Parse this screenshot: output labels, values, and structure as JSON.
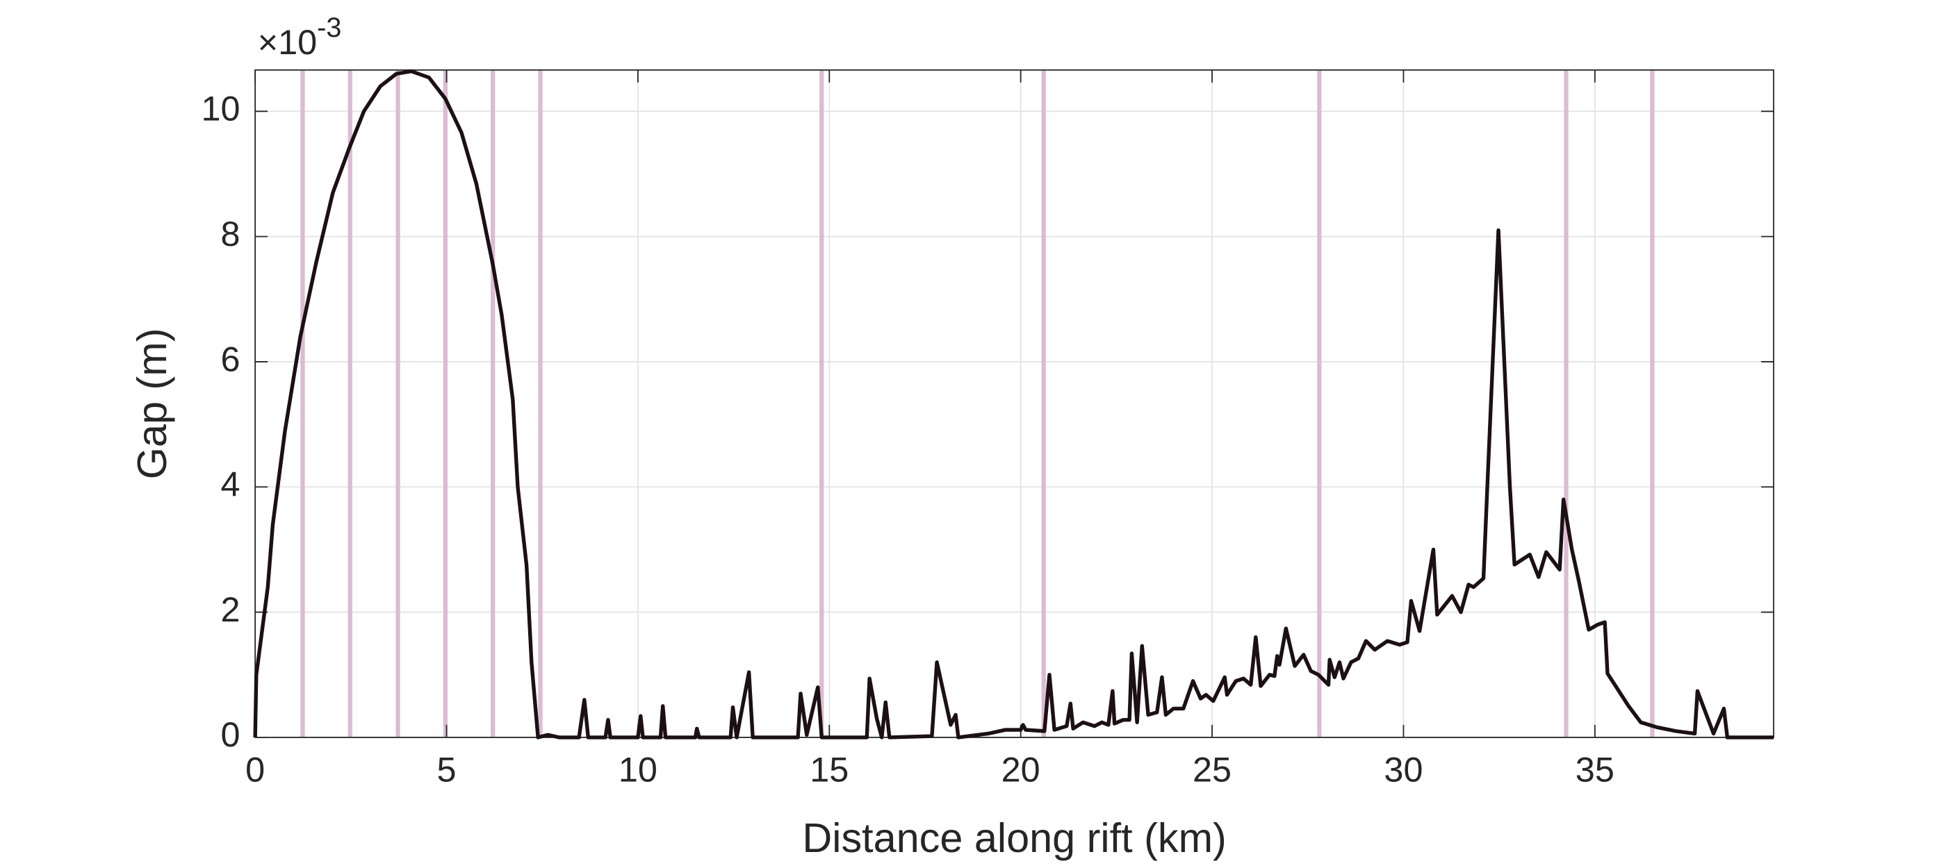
{
  "chart_data": {
    "type": "line",
    "x_label": "Distance along rift (km)",
    "y_label": "Gap (m)",
    "y_multiplier": {
      "base": "×10",
      "exponent": "-3"
    },
    "xlim": [
      0,
      39.67
    ],
    "ylim": [
      0,
      0.01066
    ],
    "xticks": [
      0,
      5,
      10,
      15,
      20,
      25,
      30,
      35
    ],
    "yticks": [
      0,
      {
        "value": 0.002,
        "label": "2"
      },
      {
        "value": 0.004,
        "label": "4"
      },
      {
        "value": 0.006,
        "label": "6"
      },
      {
        "value": 0.008,
        "label": "8"
      },
      {
        "value": 0.01,
        "label": "10"
      }
    ],
    "grid": true,
    "markers": {
      "color": "#dcbcd2",
      "x": [
        1.24,
        2.48,
        3.73,
        4.97,
        6.21,
        7.45,
        14.8,
        20.6,
        27.8,
        34.25,
        36.5
      ]
    },
    "series": [
      {
        "color": "#1c1014",
        "x": [
          0,
          0.03,
          0.33,
          0.46,
          0.78,
          1.18,
          1.6,
          2.03,
          2.45,
          2.84,
          3.27,
          3.69,
          4.08,
          4.54,
          4.97,
          5.39,
          5.78,
          6.21,
          6.44,
          6.73,
          6.86,
          7.09,
          7.22,
          7.39,
          7.65,
          7.94,
          8.46,
          8.6,
          8.7,
          9.15,
          9.22,
          9.28,
          10.0,
          10.07,
          10.13,
          10.59,
          10.65,
          10.72,
          11.5,
          11.54,
          11.6,
          12.42,
          12.48,
          12.58,
          12.9,
          13.0,
          14.18,
          14.25,
          14.41,
          14.7,
          14.8,
          15.98,
          16.05,
          16.24,
          16.37,
          16.47,
          16.57,
          17.68,
          17.81,
          18.17,
          18.3,
          18.37,
          19.15,
          19.6,
          20.0,
          20.06,
          20.13,
          20.62,
          20.75,
          20.88,
          21.2,
          21.3,
          21.37,
          21.63,
          21.93,
          22.12,
          22.29,
          22.4,
          22.45,
          22.68,
          22.84,
          22.9,
          23.04,
          23.17,
          23.33,
          23.56,
          23.69,
          23.79,
          23.99,
          24.25,
          24.5,
          24.7,
          24.84,
          25.03,
          25.33,
          25.39,
          25.62,
          25.82,
          26.01,
          26.14,
          26.27,
          26.5,
          26.63,
          26.7,
          26.76,
          26.93,
          27.16,
          27.39,
          27.58,
          27.78,
          28.04,
          28.07,
          28.2,
          28.33,
          28.43,
          28.63,
          28.82,
          29.02,
          29.25,
          29.58,
          29.9,
          30.1,
          30.2,
          30.42,
          30.78,
          30.88,
          31.27,
          31.5,
          31.7,
          31.83,
          32.09,
          32.19,
          32.48,
          32.78,
          32.9,
          33.3,
          33.53,
          33.73,
          34.08,
          34.18,
          34.4,
          34.58,
          34.84,
          35.07,
          35.26,
          35.33,
          35.69,
          35.88,
          36.2,
          36.63,
          37.12,
          37.61,
          37.68,
          38.1,
          38.37,
          38.46,
          39.08,
          39.67
        ],
        "values": [
          0,
          0.001,
          0.0024,
          0.0034,
          0.0049,
          0.0064,
          0.0076,
          0.0087,
          0.0094,
          0.01,
          0.0104,
          0.0106,
          0.01064,
          0.01054,
          0.0102,
          0.00966,
          0.00884,
          0.00755,
          0.00675,
          0.0054,
          0.004,
          0.00275,
          0.0012,
          0,
          4e-05,
          0,
          0,
          0.0006,
          0,
          0,
          0.00028,
          0,
          0,
          0.00034,
          0,
          0,
          0.0005,
          0,
          0,
          0.00014,
          0,
          0,
          0.00048,
          0,
          0.00104,
          0,
          0,
          0.0007,
          4e-05,
          0.0008,
          0,
          0,
          0.00094,
          0.0003,
          0,
          0.00056,
          0,
          2e-05,
          0.0012,
          0.0002,
          0.00036,
          0,
          6e-05,
          0.00012,
          0.00012,
          0.0002,
          0.00012,
          0.0001,
          0.001,
          0.00012,
          0.00018,
          0.00054,
          0.00014,
          0.00024,
          0.00018,
          0.00024,
          0.0002,
          0.00074,
          0.00022,
          0.00028,
          0.00028,
          0.00134,
          0.00024,
          0.00146,
          0.00036,
          0.0004,
          0.00096,
          0.00036,
          0.00046,
          0.00046,
          0.0009,
          0.00062,
          0.00068,
          0.00058,
          0.00096,
          0.00068,
          0.0009,
          0.00094,
          0.00084,
          0.0016,
          0.00082,
          0.001,
          0.00098,
          0.0013,
          0.00116,
          0.00174,
          0.00114,
          0.00132,
          0.00106,
          0.001,
          0.00084,
          0.00124,
          0.00096,
          0.0012,
          0.00094,
          0.0012,
          0.00126,
          0.00154,
          0.0014,
          0.00154,
          0.00148,
          0.00152,
          0.00218,
          0.0017,
          0.003,
          0.00196,
          0.00226,
          0.002,
          0.00244,
          0.0024,
          0.00254,
          0.004,
          0.0081,
          0.004,
          0.00276,
          0.00292,
          0.00256,
          0.00296,
          0.00268,
          0.0038,
          0.003,
          0.0025,
          0.00172,
          0.0018,
          0.00184,
          0.00102,
          0.00068,
          0.0005,
          0.00024,
          0.00016,
          0.0001,
          6e-05,
          0.00074,
          6e-05,
          0.00046,
          0,
          0,
          0
        ]
      }
    ]
  }
}
